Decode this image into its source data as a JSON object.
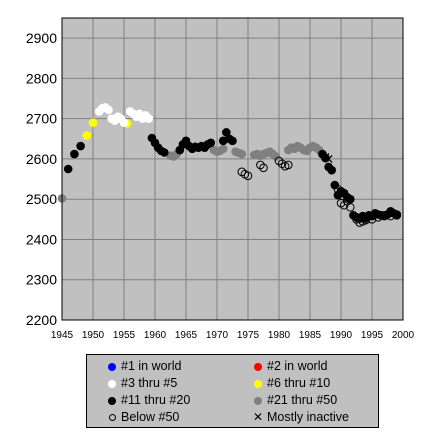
{
  "chart_data": {
    "type": "scatter",
    "title": "",
    "xlabel": "",
    "ylabel": "",
    "xlim": [
      1945,
      2000
    ],
    "ylim": [
      2200,
      2950
    ],
    "xticks": [
      "1945",
      "1950",
      "1955",
      "1960",
      "1965",
      "1970",
      "1975",
      "1980",
      "1985",
      "1990",
      "1995",
      "2000"
    ],
    "yticks": [
      "2200",
      "2300",
      "2400",
      "2500",
      "2600",
      "2700",
      "2800",
      "2900"
    ],
    "grid": true,
    "background_color": "#c0c0c0",
    "grid_color": "#808080",
    "legend_position": "bottom",
    "legend": [
      {
        "label": "#1 in world",
        "marker": "filled",
        "color": "#0000ff"
      },
      {
        "label": "#2 in world",
        "marker": "filled",
        "color": "#ff0000"
      },
      {
        "label": "#3 thru #5",
        "marker": "filled",
        "color": "#ffffff"
      },
      {
        "label": "#6 thru #10",
        "marker": "filled",
        "color": "#ffff00"
      },
      {
        "label": "#11 thru #20",
        "marker": "filled",
        "color": "#000000"
      },
      {
        "label": "#21 thru #50",
        "marker": "filled",
        "color": "#808080"
      },
      {
        "label": "Below #50",
        "marker": "open",
        "color": "#000000"
      },
      {
        "label": "Mostly inactive",
        "marker": "x",
        "color": "#000000"
      }
    ],
    "series": [
      {
        "name": "#21 thru #50",
        "color": "#808080",
        "marker": "filled",
        "points": [
          [
            1945.0,
            2502
          ],
          [
            1962.5,
            2608
          ],
          [
            1963.0,
            2606
          ],
          [
            1963.5,
            2612
          ],
          [
            1969.5,
            2622
          ],
          [
            1970.0,
            2618
          ],
          [
            1970.5,
            2620
          ],
          [
            1971.0,
            2625
          ],
          [
            1973.0,
            2618
          ],
          [
            1973.5,
            2615
          ],
          [
            1974.0,
            2612
          ],
          [
            1976.0,
            2610
          ],
          [
            1976.5,
            2612
          ],
          [
            1977.0,
            2608
          ],
          [
            1977.5,
            2612
          ],
          [
            1978.0,
            2615
          ],
          [
            1978.5,
            2618
          ],
          [
            1979.0,
            2612
          ],
          [
            1979.5,
            2606
          ],
          [
            1981.5,
            2622
          ],
          [
            1982.0,
            2628
          ],
          [
            1982.5,
            2625
          ],
          [
            1983.0,
            2632
          ],
          [
            1983.5,
            2628
          ],
          [
            1984.0,
            2622
          ],
          [
            1984.5,
            2620
          ],
          [
            1985.0,
            2628
          ],
          [
            1985.5,
            2632
          ],
          [
            1986.0,
            2628
          ],
          [
            1986.5,
            2622
          ]
        ]
      },
      {
        "name": "#11 thru #20",
        "color": "#000000",
        "marker": "filled",
        "points": [
          [
            1946.0,
            2575
          ],
          [
            1947.0,
            2612
          ],
          [
            1948.0,
            2632
          ],
          [
            1959.5,
            2652
          ],
          [
            1960.0,
            2640
          ],
          [
            1960.5,
            2628
          ],
          [
            1961.0,
            2620
          ],
          [
            1961.5,
            2616
          ],
          [
            1964.0,
            2622
          ],
          [
            1964.5,
            2636
          ],
          [
            1965.0,
            2645
          ],
          [
            1965.5,
            2632
          ],
          [
            1966.0,
            2625
          ],
          [
            1966.5,
            2630
          ],
          [
            1967.0,
            2628
          ],
          [
            1967.5,
            2632
          ],
          [
            1968.0,
            2628
          ],
          [
            1968.5,
            2636
          ],
          [
            1969.0,
            2640
          ],
          [
            1971.0,
            2645
          ],
          [
            1971.5,
            2666
          ],
          [
            1972.0,
            2650
          ],
          [
            1972.5,
            2645
          ],
          [
            1987.0,
            2612
          ],
          [
            1987.5,
            2602
          ],
          [
            1988.0,
            2580
          ],
          [
            1988.5,
            2572
          ],
          [
            1989.0,
            2535
          ],
          [
            1989.5,
            2510
          ],
          [
            1990.0,
            2520
          ],
          [
            1990.5,
            2515
          ],
          [
            1991.0,
            2505
          ],
          [
            1991.5,
            2500
          ],
          [
            1992.0,
            2460
          ],
          [
            1992.5,
            2455
          ],
          [
            1993.0,
            2452
          ],
          [
            1993.5,
            2458
          ],
          [
            1994.0,
            2452
          ],
          [
            1994.5,
            2460
          ],
          [
            1995.0,
            2458
          ],
          [
            1995.5,
            2465
          ],
          [
            1996.0,
            2462
          ],
          [
            1996.5,
            2460
          ],
          [
            1997.0,
            2458
          ],
          [
            1997.5,
            2462
          ],
          [
            1998.0,
            2470
          ],
          [
            1998.5,
            2465
          ],
          [
            1999.0,
            2462
          ]
        ]
      },
      {
        "name": "#6 thru #10",
        "color": "#ffff00",
        "marker": "filled",
        "points": [
          [
            1949.0,
            2658
          ],
          [
            1950.0,
            2690
          ],
          [
            1955.5,
            2688
          ]
        ]
      },
      {
        "name": "#3 thru #5",
        "color": "#ffffff",
        "marker": "filled",
        "points": [
          [
            1951.0,
            2718
          ],
          [
            1951.5,
            2726
          ],
          [
            1952.0,
            2728
          ],
          [
            1952.5,
            2722
          ],
          [
            1953.0,
            2700
          ],
          [
            1953.5,
            2695
          ],
          [
            1954.0,
            2705
          ],
          [
            1954.5,
            2700
          ],
          [
            1955.0,
            2690
          ],
          [
            1956.0,
            2718
          ],
          [
            1956.5,
            2712
          ],
          [
            1957.0,
            2705
          ],
          [
            1957.5,
            2712
          ],
          [
            1958.0,
            2700
          ],
          [
            1958.5,
            2708
          ],
          [
            1959.0,
            2700
          ]
        ]
      },
      {
        "name": "Below #50",
        "color": "#000000",
        "marker": "open",
        "points": [
          [
            1974.0,
            2568
          ],
          [
            1974.5,
            2562
          ],
          [
            1975.0,
            2558
          ],
          [
            1977.0,
            2585
          ],
          [
            1977.5,
            2578
          ],
          [
            1980.0,
            2595
          ],
          [
            1980.5,
            2588
          ],
          [
            1981.0,
            2582
          ],
          [
            1981.5,
            2585
          ],
          [
            1989.5,
            2525
          ],
          [
            1990.0,
            2490
          ],
          [
            1990.5,
            2485
          ],
          [
            1991.0,
            2495
          ],
          [
            1991.5,
            2480
          ],
          [
            1992.5,
            2450
          ],
          [
            1993.0,
            2442
          ],
          [
            1993.5,
            2445
          ],
          [
            1994.0,
            2448
          ],
          [
            1995.0,
            2450
          ],
          [
            1996.0,
            2455
          ],
          [
            1997.0,
            2460
          ],
          [
            1998.0,
            2458
          ],
          [
            1999.0,
            2460
          ]
        ]
      },
      {
        "name": "Mostly inactive",
        "color": "#000000",
        "marker": "x",
        "points": [
          [
            1987.5,
            2605
          ],
          [
            1988.0,
            2600
          ]
        ]
      }
    ]
  }
}
